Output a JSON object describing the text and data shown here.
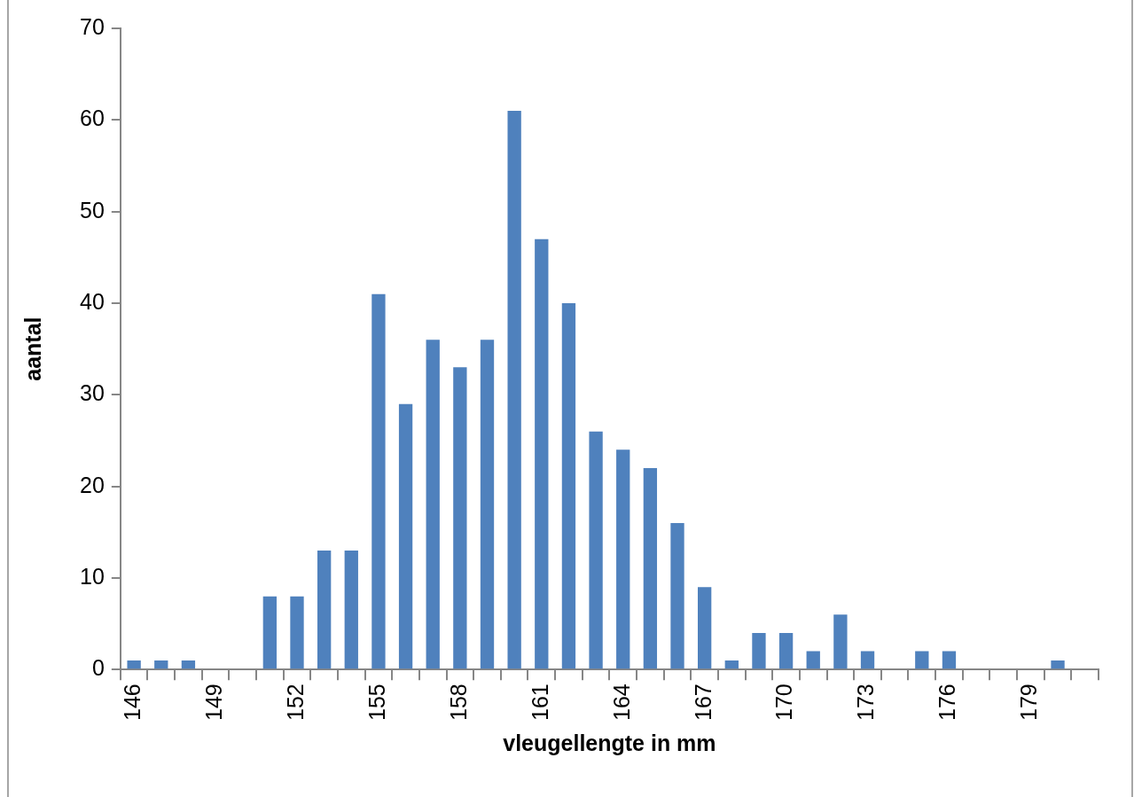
{
  "chart_data": {
    "type": "bar",
    "xlabel": "vleugellengte in mm",
    "ylabel": "aantal",
    "categories": [
      "146",
      null,
      null,
      "149",
      null,
      null,
      "152",
      null,
      null,
      "155",
      null,
      null,
      "158",
      null,
      null,
      "161",
      null,
      null,
      "164",
      null,
      null,
      "167",
      null,
      null,
      "170",
      null,
      null,
      "173",
      null,
      null,
      "176",
      null,
      null,
      "179",
      null,
      null
    ],
    "values": [
      1,
      1,
      1,
      0,
      0,
      8,
      8,
      13,
      13,
      41,
      29,
      36,
      33,
      36,
      61,
      47,
      40,
      26,
      24,
      22,
      16,
      9,
      1,
      4,
      4,
      2,
      6,
      2,
      0,
      2,
      2,
      0,
      0,
      0,
      1,
      0
    ],
    "color": "#4f81bd",
    "ylim": [
      0,
      70
    ],
    "yticks": [
      0,
      10,
      20,
      30,
      40,
      50,
      60,
      70
    ],
    "grid": false,
    "legend": false
  }
}
